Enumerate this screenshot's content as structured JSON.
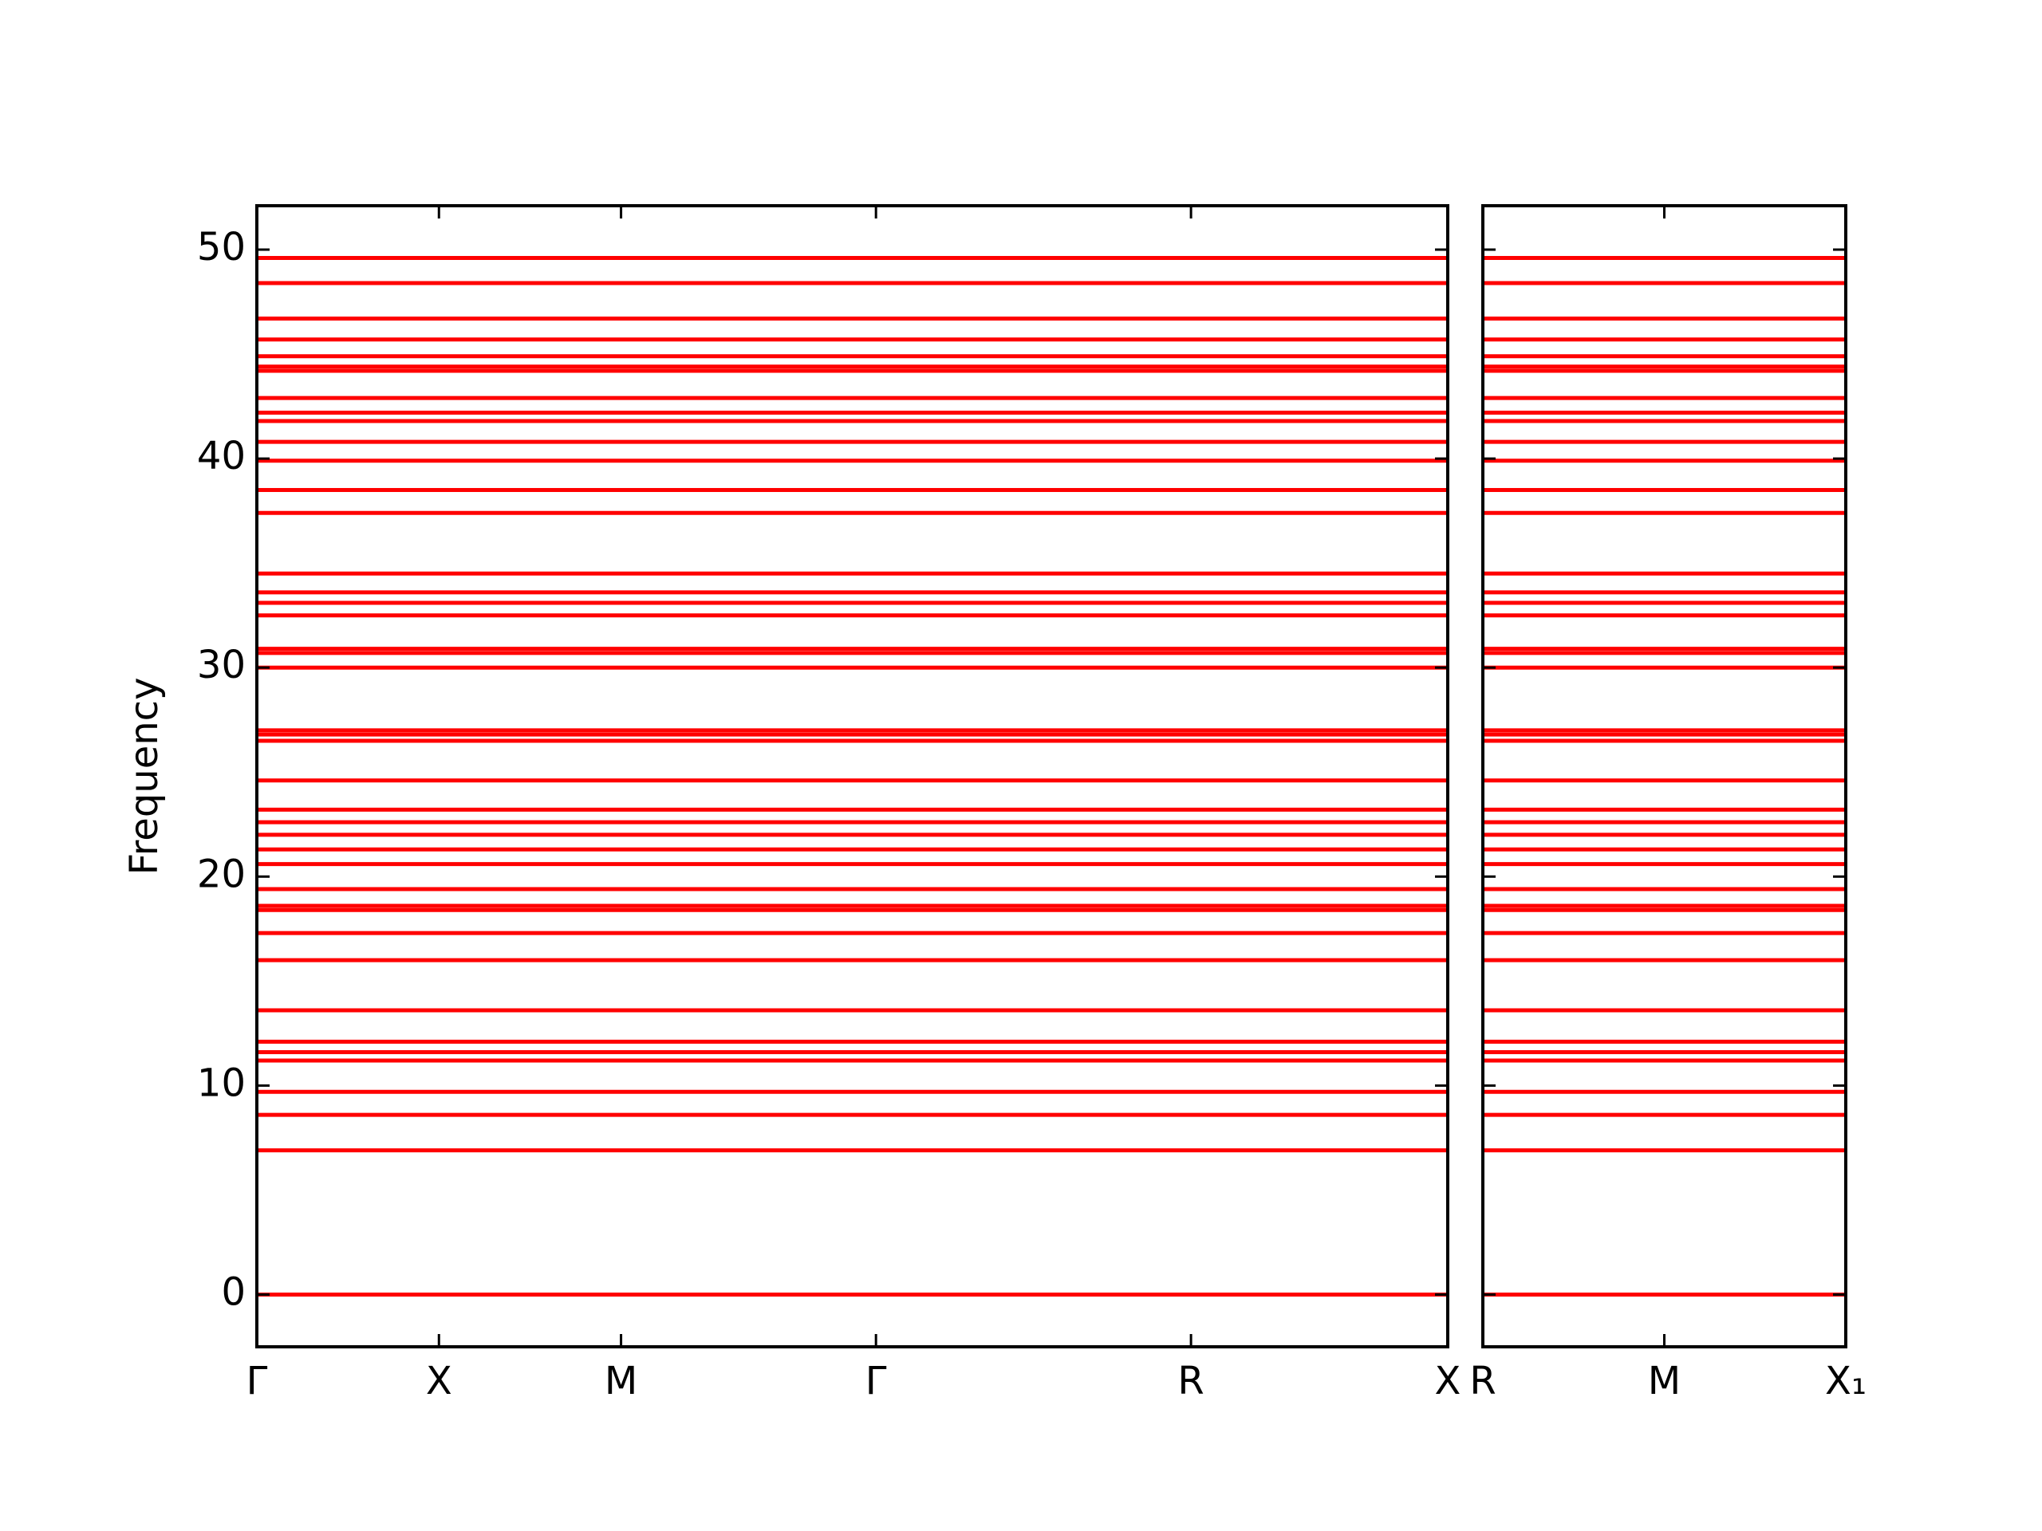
{
  "chart_data": [
    {
      "type": "line",
      "ylabel": "Frequency",
      "color": "#ff0000",
      "x": [
        0,
        6.54
      ],
      "xlim": [
        0,
        6.54
      ],
      "xticks": [
        {
          "value": 0,
          "label": "Γ"
        },
        {
          "value": 1,
          "label": "X"
        },
        {
          "value": 2,
          "label": "M"
        },
        {
          "value": 3.4,
          "label": "Γ"
        },
        {
          "value": 5.13,
          "label": "R"
        },
        {
          "value": 6.54,
          "label": "X"
        }
      ],
      "ylim": [
        -2.5,
        52.1
      ],
      "yticks": [
        0,
        10,
        20,
        30,
        40,
        50
      ],
      "show_ytick_labels": true,
      "series": [
        {
          "values": [
            0,
            0
          ]
        },
        {
          "values": [
            6.9,
            6.9
          ]
        },
        {
          "values": [
            8.6,
            8.6
          ]
        },
        {
          "values": [
            9.7,
            9.7
          ]
        },
        {
          "values": [
            11.2,
            11.2
          ]
        },
        {
          "values": [
            11.6,
            11.6
          ]
        },
        {
          "values": [
            12.1,
            12.1
          ]
        },
        {
          "values": [
            13.6,
            13.6
          ]
        },
        {
          "values": [
            16.0,
            16.0
          ]
        },
        {
          "values": [
            17.3,
            17.3
          ]
        },
        {
          "values": [
            18.4,
            18.4
          ]
        },
        {
          "values": [
            18.6,
            18.6
          ]
        },
        {
          "values": [
            19.4,
            19.4
          ]
        },
        {
          "values": [
            20.6,
            20.6
          ]
        },
        {
          "values": [
            21.3,
            21.3
          ]
        },
        {
          "values": [
            22.0,
            22.0
          ]
        },
        {
          "values": [
            22.6,
            22.6
          ]
        },
        {
          "values": [
            23.2,
            23.2
          ]
        },
        {
          "values": [
            24.6,
            24.6
          ]
        },
        {
          "values": [
            26.5,
            26.5
          ]
        },
        {
          "values": [
            26.8,
            26.8
          ]
        },
        {
          "values": [
            27.0,
            27.0
          ]
        },
        {
          "values": [
            30.0,
            30.0
          ]
        },
        {
          "values": [
            30.7,
            30.7
          ]
        },
        {
          "values": [
            30.9,
            30.9
          ]
        },
        {
          "values": [
            32.5,
            32.5
          ]
        },
        {
          "values": [
            33.1,
            33.1
          ]
        },
        {
          "values": [
            33.6,
            33.6
          ]
        },
        {
          "values": [
            34.5,
            34.5
          ]
        },
        {
          "values": [
            37.4,
            37.4
          ]
        },
        {
          "values": [
            38.5,
            38.5
          ]
        },
        {
          "values": [
            39.9,
            39.9
          ]
        },
        {
          "values": [
            40.8,
            40.8
          ]
        },
        {
          "values": [
            41.8,
            41.8
          ]
        },
        {
          "values": [
            42.2,
            42.2
          ]
        },
        {
          "values": [
            42.9,
            42.9
          ]
        },
        {
          "values": [
            44.2,
            44.2
          ]
        },
        {
          "values": [
            44.4,
            44.4
          ]
        },
        {
          "values": [
            44.9,
            44.9
          ]
        },
        {
          "values": [
            45.7,
            45.7
          ]
        },
        {
          "values": [
            46.7,
            46.7
          ]
        },
        {
          "values": [
            48.4,
            48.4
          ]
        },
        {
          "values": [
            49.6,
            49.6
          ]
        }
      ]
    },
    {
      "type": "line",
      "color": "#ff0000",
      "x": [
        0,
        2
      ],
      "xlim": [
        0,
        2
      ],
      "xticks": [
        {
          "value": 0,
          "label": "R"
        },
        {
          "value": 1,
          "label": "M"
        },
        {
          "value": 2,
          "label": "X₁"
        }
      ],
      "ylim": [
        -2.5,
        52.1
      ],
      "yticks": [
        0,
        10,
        20,
        30,
        40,
        50
      ],
      "show_ytick_labels": false,
      "series": [
        {
          "values": [
            0,
            0
          ]
        },
        {
          "values": [
            6.9,
            6.9
          ]
        },
        {
          "values": [
            8.6,
            8.6
          ]
        },
        {
          "values": [
            9.7,
            9.7
          ]
        },
        {
          "values": [
            11.2,
            11.2
          ]
        },
        {
          "values": [
            11.6,
            11.6
          ]
        },
        {
          "values": [
            12.1,
            12.1
          ]
        },
        {
          "values": [
            13.6,
            13.6
          ]
        },
        {
          "values": [
            16.0,
            16.0
          ]
        },
        {
          "values": [
            17.3,
            17.3
          ]
        },
        {
          "values": [
            18.4,
            18.4
          ]
        },
        {
          "values": [
            18.6,
            18.6
          ]
        },
        {
          "values": [
            19.4,
            19.4
          ]
        },
        {
          "values": [
            20.6,
            20.6
          ]
        },
        {
          "values": [
            21.3,
            21.3
          ]
        },
        {
          "values": [
            22.0,
            22.0
          ]
        },
        {
          "values": [
            22.6,
            22.6
          ]
        },
        {
          "values": [
            23.2,
            23.2
          ]
        },
        {
          "values": [
            24.6,
            24.6
          ]
        },
        {
          "values": [
            26.5,
            26.5
          ]
        },
        {
          "values": [
            26.8,
            26.8
          ]
        },
        {
          "values": [
            27.0,
            27.0
          ]
        },
        {
          "values": [
            30.0,
            30.0
          ]
        },
        {
          "values": [
            30.7,
            30.7
          ]
        },
        {
          "values": [
            30.9,
            30.9
          ]
        },
        {
          "values": [
            32.5,
            32.5
          ]
        },
        {
          "values": [
            33.1,
            33.1
          ]
        },
        {
          "values": [
            33.6,
            33.6
          ]
        },
        {
          "values": [
            34.5,
            34.5
          ]
        },
        {
          "values": [
            37.4,
            37.4
          ]
        },
        {
          "values": [
            38.5,
            38.5
          ]
        },
        {
          "values": [
            39.9,
            39.9
          ]
        },
        {
          "values": [
            40.8,
            40.8
          ]
        },
        {
          "values": [
            41.8,
            41.8
          ]
        },
        {
          "values": [
            42.2,
            42.2
          ]
        },
        {
          "values": [
            42.9,
            42.9
          ]
        },
        {
          "values": [
            44.2,
            44.2
          ]
        },
        {
          "values": [
            44.4,
            44.4
          ]
        },
        {
          "values": [
            44.9,
            44.9
          ]
        },
        {
          "values": [
            45.7,
            45.7
          ]
        },
        {
          "values": [
            46.7,
            46.7
          ]
        },
        {
          "values": [
            48.4,
            48.4
          ]
        },
        {
          "values": [
            49.6,
            49.6
          ]
        }
      ]
    }
  ]
}
